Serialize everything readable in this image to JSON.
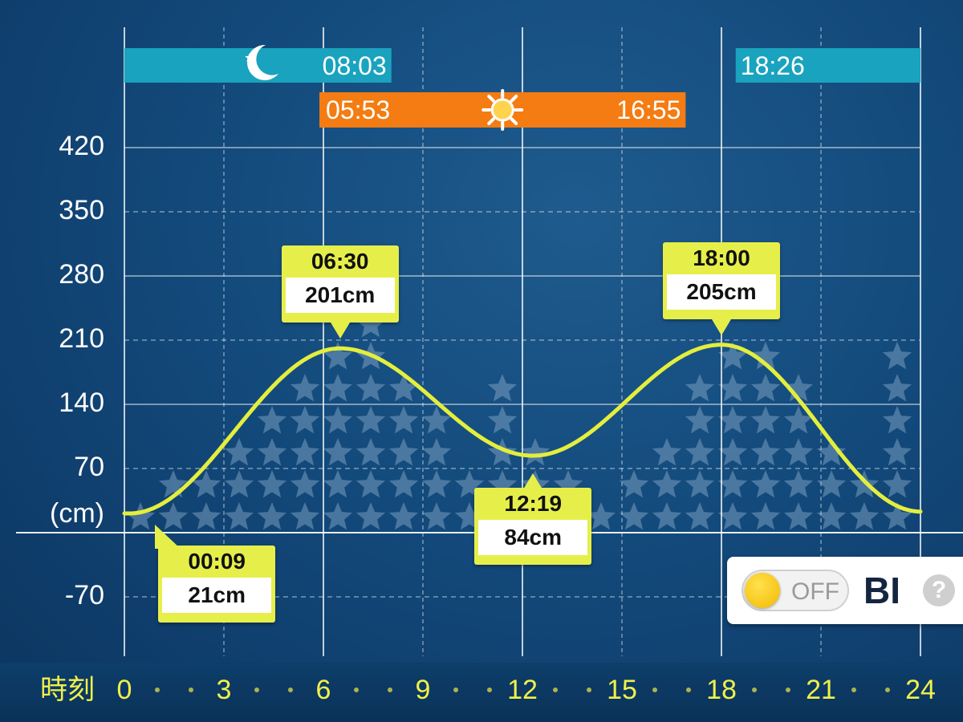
{
  "chart_data": {
    "type": "line",
    "y_unit_label": "(cm)",
    "x_label": "時刻",
    "xlim": [
      0,
      24
    ],
    "ylim": [
      -105,
      455
    ],
    "x_ticks": [
      0,
      3,
      6,
      9,
      12,
      15,
      18,
      21,
      24
    ],
    "y_ticks": [
      420,
      350,
      280,
      210,
      140,
      70,
      -70
    ],
    "series": [
      {
        "color": "#e4ee3c",
        "x": [
          0.15,
          6.5,
          12.32,
          18.0,
          24.0
        ],
        "y": [
          21,
          201,
          84,
          205,
          23
        ]
      }
    ],
    "annotations": [
      {
        "time": "00:09",
        "value": "21cm",
        "x": 0.15,
        "y": 21
      },
      {
        "time": "06:30",
        "value": "201cm",
        "x": 6.5,
        "y": 201
      },
      {
        "time": "12:19",
        "value": "84cm",
        "x": 12.32,
        "y": 84
      },
      {
        "time": "18:00",
        "value": "205cm",
        "x": 18.0,
        "y": 205
      }
    ],
    "grid": true
  },
  "moon": {
    "bars": [
      {
        "start": 0,
        "end": 8.05,
        "label": "08:03"
      },
      {
        "start": 18.43,
        "end": 24,
        "label": "18:26"
      }
    ],
    "color": "#1aa3be",
    "icon": "moon-icon"
  },
  "sun": {
    "start": 5.88,
    "end": 16.92,
    "rise_label": "05:53",
    "set_label": "16:55",
    "color": "#f47c12",
    "icon": "sun-icon"
  },
  "bi_panel": {
    "toggle_label": "OFF",
    "brand": "BI",
    "help": "?"
  },
  "colors": {
    "background": "#134a7c",
    "axis_labels": "#f0f04a",
    "callout": "#e6ef4a"
  }
}
